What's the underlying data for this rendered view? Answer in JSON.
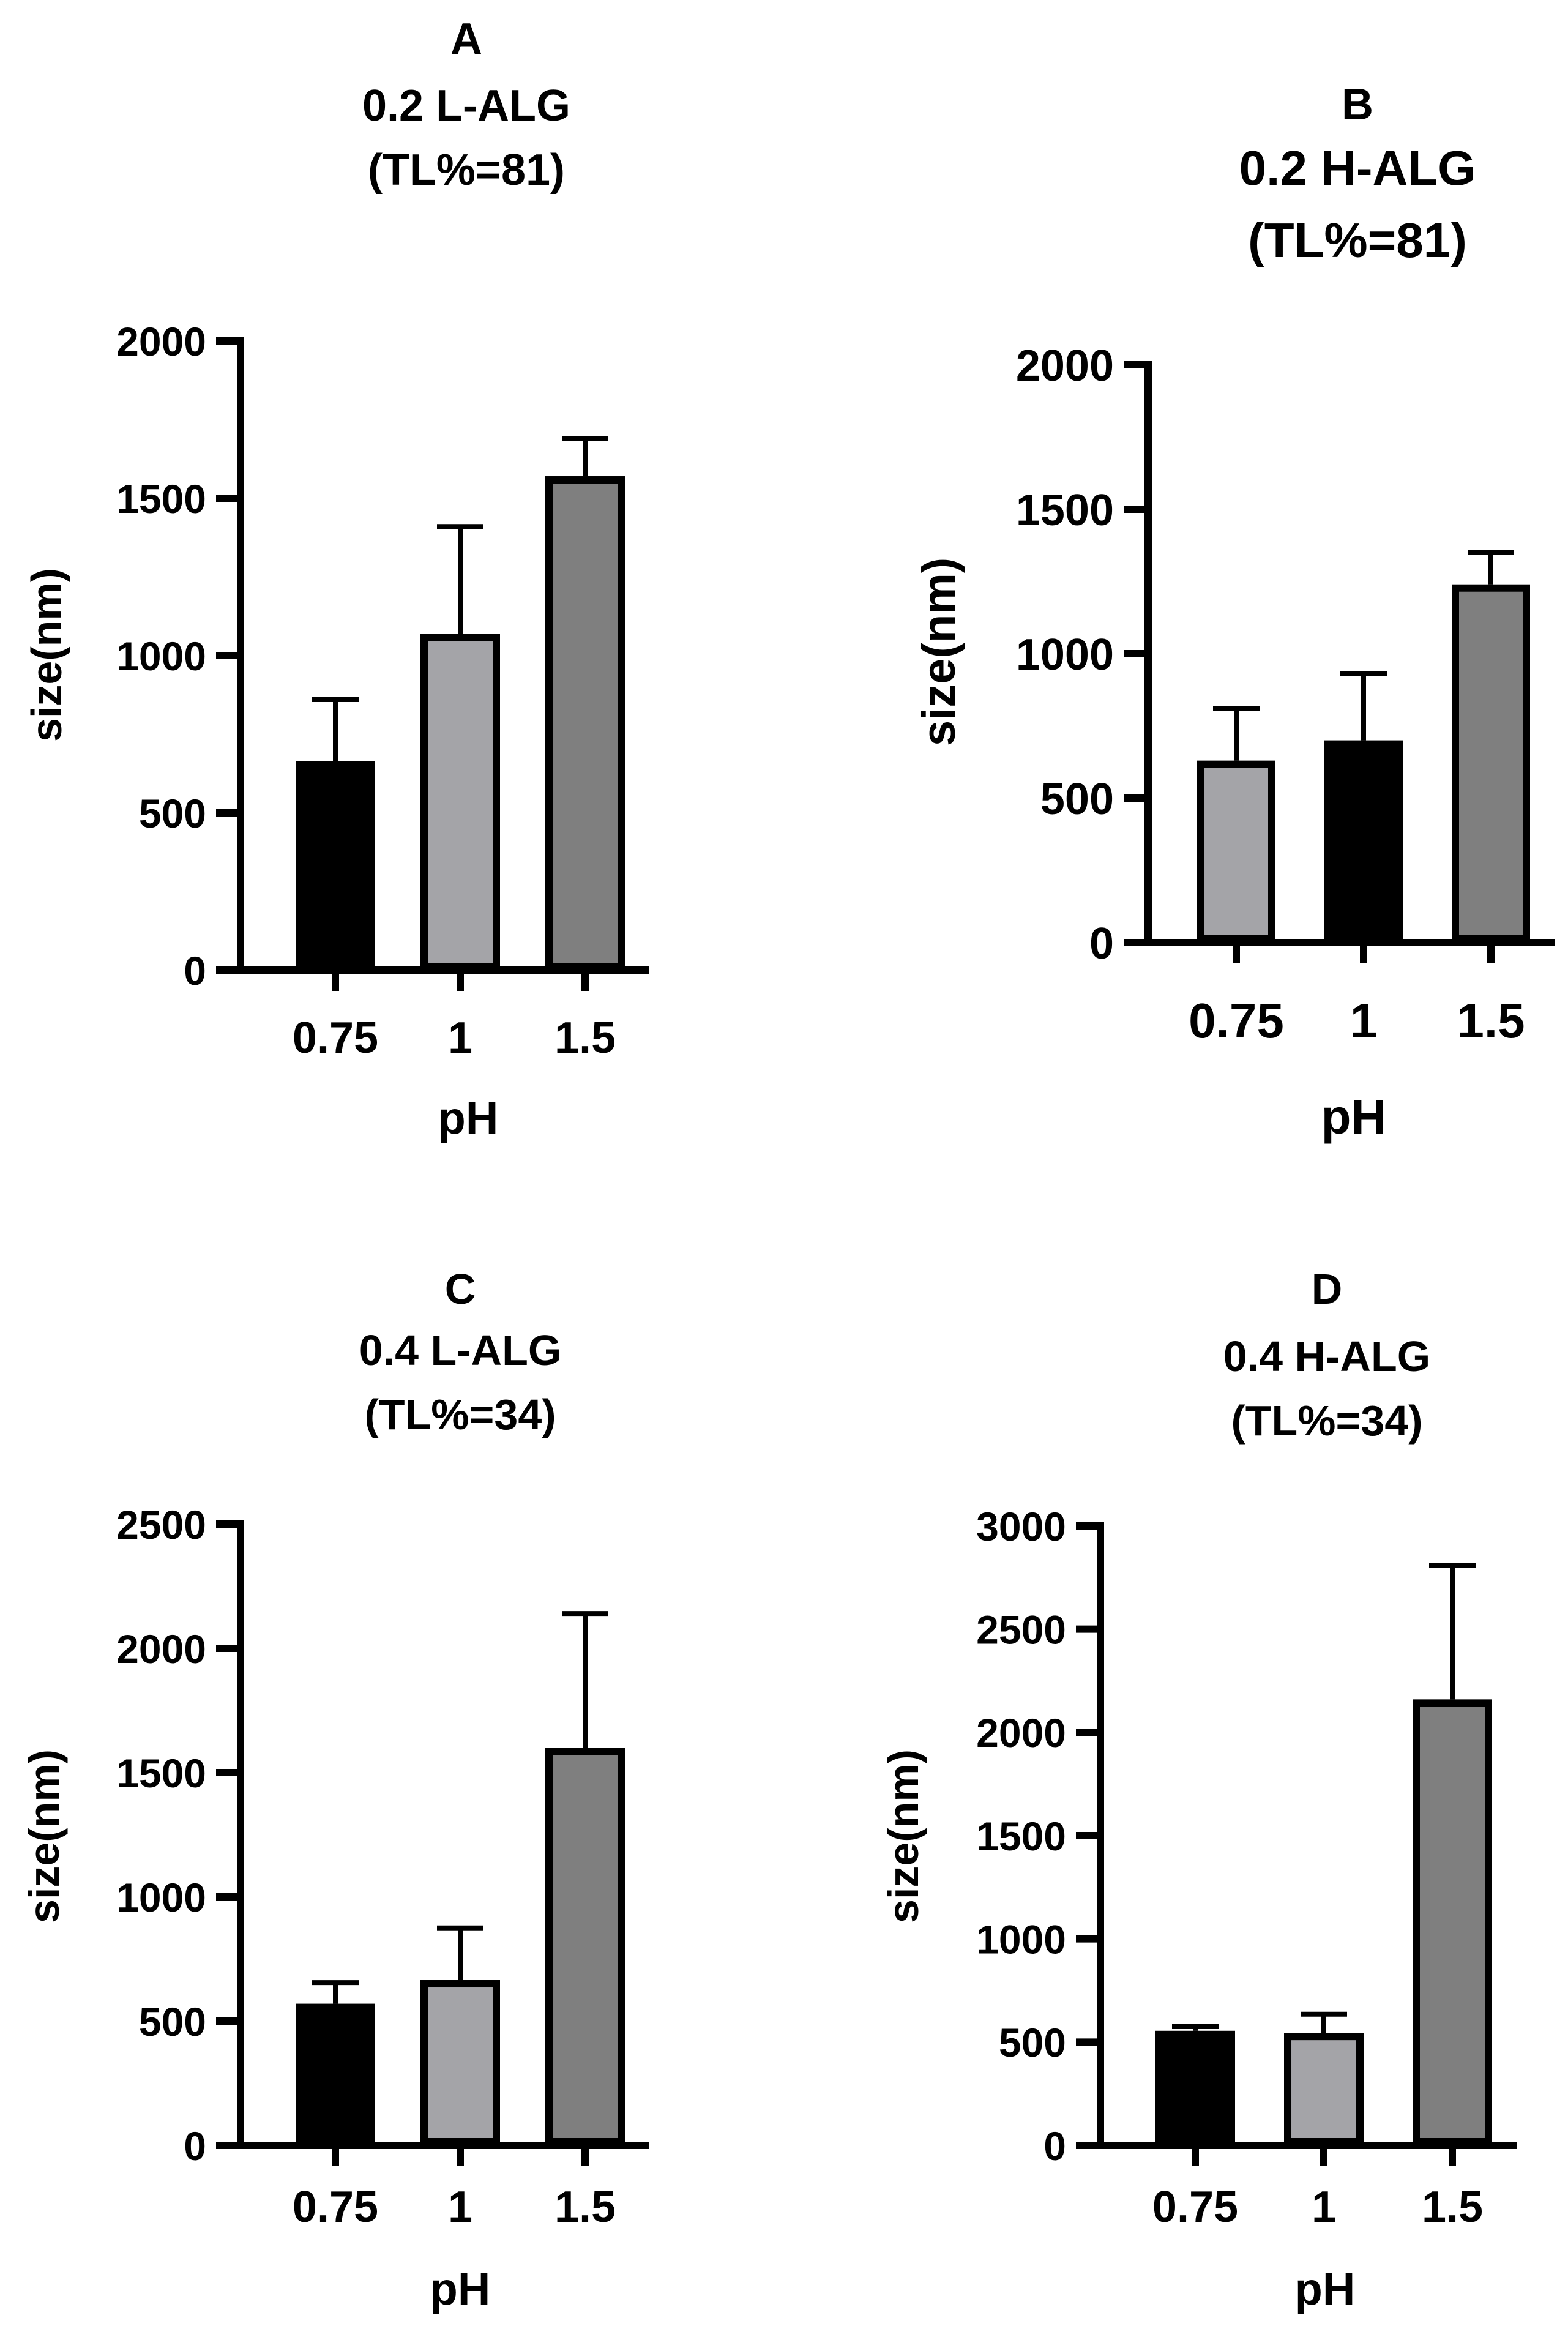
{
  "figure": {
    "type": "multi-panel bar chart"
  },
  "chart_data": [
    {
      "type": "bar",
      "panel_letter": "A",
      "title_lines": [
        "A",
        "0.2 L-ALG",
        "(TL%=81)"
      ],
      "xlabel": "pH",
      "ylabel": "size(nm)",
      "categories": [
        "0.75",
        "1",
        "1.5"
      ],
      "values": [
        665,
        1070,
        1570
      ],
      "errors": [
        195,
        340,
        120
      ],
      "bar_colors": [
        "#000000",
        "#a4a4a8",
        "#7f7f7f"
      ],
      "ylim": [
        0,
        2000
      ],
      "yticks": [
        0,
        500,
        1000,
        1500,
        2000
      ],
      "ytick_labels": [
        "0",
        "500",
        "1000",
        "1500",
        "2000"
      ]
    },
    {
      "type": "bar",
      "panel_letter": "B",
      "title_lines": [
        "B",
        "0.2 H-ALG",
        "(TL%=81)"
      ],
      "xlabel": "pH",
      "ylabel": "size(nm)",
      "categories": [
        "0.75",
        "1",
        "1.5"
      ],
      "values": [
        630,
        700,
        1240
      ],
      "errors": [
        180,
        230,
        110
      ],
      "bar_colors": [
        "#a4a4a8",
        "#000000",
        "#7f7f7f"
      ],
      "ylim": [
        0,
        2000
      ],
      "yticks": [
        0,
        500,
        1000,
        1500,
        2000
      ],
      "ytick_labels": [
        "0",
        "500",
        "1000",
        "1500",
        "2000"
      ]
    },
    {
      "type": "bar",
      "panel_letter": "C",
      "title_lines": [
        "C",
        "0.4 L-ALG",
        "(TL%=34)"
      ],
      "xlabel": "pH",
      "ylabel": "size(nm)",
      "categories": [
        "0.75",
        "1",
        "1.5"
      ],
      "values": [
        570,
        665,
        1600
      ],
      "errors": [
        85,
        210,
        540
      ],
      "bar_colors": [
        "#000000",
        "#a4a4a8",
        "#7f7f7f"
      ],
      "ylim": [
        0,
        2500
      ],
      "yticks": [
        0,
        500,
        1000,
        1500,
        2000,
        2500
      ],
      "ytick_labels": [
        "0",
        "500",
        "1000",
        "1500",
        "2000",
        "2500"
      ]
    },
    {
      "type": "bar",
      "panel_letter": "D",
      "title_lines": [
        "D",
        "0.4 H-ALG",
        "(TL%=34)"
      ],
      "xlabel": "pH",
      "ylabel": "size(nm)",
      "categories": [
        "0.75",
        "1",
        "1.5"
      ],
      "values": [
        555,
        545,
        2160
      ],
      "errors": [
        20,
        90,
        650
      ],
      "bar_colors": [
        "#000000",
        "#a4a4a8",
        "#7f7f7f"
      ],
      "ylim": [
        0,
        3000
      ],
      "yticks": [
        0,
        500,
        1000,
        1500,
        2000,
        2500,
        3000
      ],
      "ytick_labels": [
        "0",
        "500",
        "1000",
        "1500",
        "2000",
        "2500",
        "3000"
      ]
    }
  ]
}
